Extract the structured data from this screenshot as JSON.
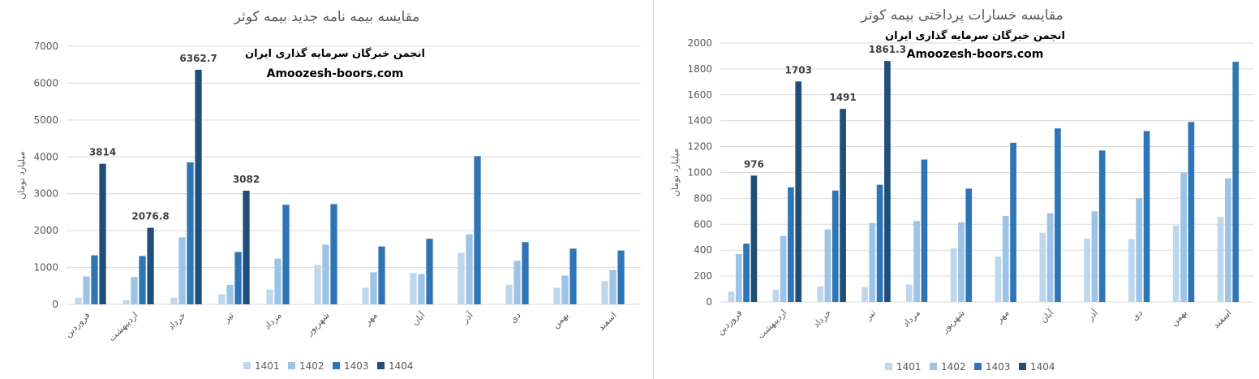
{
  "colors": {
    "series": [
      "#bdd7ee",
      "#9dc3e6",
      "#2e75b6",
      "#1f4e79"
    ],
    "gridline": "#d9d9d9",
    "axis_text": "#595959",
    "label_text": "#404040",
    "watermark": "#000000"
  },
  "chart_data": [
    {
      "type": "bar",
      "title": "مقایسه بیمه نامه جدید بیمه کوثر",
      "ylabel": "میلیارد تومان",
      "xlabel": "",
      "ylim": [
        0,
        7000
      ],
      "yticks": [
        0,
        1000,
        2000,
        3000,
        4000,
        5000,
        6000,
        7000
      ],
      "grid": true,
      "legend_position": "bottom",
      "watermark": [
        "انجمن خبرگان سرمایه گذاری ایران",
        "Amoozesh-boors.com"
      ],
      "categories": [
        "فروردین",
        "اردیبهشت",
        "خرداد",
        "تیر",
        "مرداد",
        "شهریور",
        "مهر",
        "آبان",
        "آذر",
        "دی",
        "بهمن",
        "اسفند"
      ],
      "series": [
        {
          "name": "1401",
          "values": [
            180,
            110,
            180,
            270,
            400,
            1070,
            450,
            850,
            1400,
            530,
            450,
            630
          ]
        },
        {
          "name": "1402",
          "values": [
            760,
            740,
            1820,
            530,
            1240,
            1620,
            870,
            820,
            1900,
            1180,
            780,
            930
          ]
        },
        {
          "name": "1403",
          "values": [
            1330,
            1310,
            3850,
            1420,
            2700,
            2720,
            1570,
            1780,
            4020,
            1690,
            1510,
            1460
          ]
        },
        {
          "name": "1404",
          "values": [
            3814,
            2076.8,
            6362.7,
            3082,
            null,
            null,
            null,
            null,
            null,
            null,
            null,
            null
          ]
        }
      ],
      "data_labels": [
        "3814",
        "2076.8",
        "6362.7",
        "3082"
      ]
    },
    {
      "type": "bar",
      "title": "مقایسه خسارات پرداختی بیمه کوثر",
      "ylabel": "میلیارد تومان",
      "xlabel": "",
      "ylim": [
        0,
        2000
      ],
      "yticks": [
        0,
        200,
        400,
        600,
        800,
        1000,
        1200,
        1400,
        1600,
        1800,
        2000
      ],
      "grid": true,
      "legend_position": "bottom",
      "watermark": [
        "انجمن خبرگان سرمایه گذاری ایران",
        "Amoozesh-boors.com"
      ],
      "categories": [
        "فروردین",
        "اردیبهشت",
        "خرداد",
        "تیر",
        "مرداد",
        "شهریور",
        "مهر",
        "آبان",
        "آذر",
        "دی",
        "بهمن",
        "اسفند"
      ],
      "series": [
        {
          "name": "1401",
          "values": [
            80,
            95,
            120,
            115,
            135,
            415,
            350,
            535,
            490,
            485,
            590,
            655
          ]
        },
        {
          "name": "1402",
          "values": [
            370,
            510,
            560,
            610,
            625,
            615,
            665,
            685,
            700,
            800,
            1000,
            955
          ]
        },
        {
          "name": "1403",
          "values": [
            450,
            885,
            860,
            905,
            1100,
            875,
            1230,
            1340,
            1170,
            1320,
            1390,
            1855
          ]
        },
        {
          "name": "1404",
          "values": [
            976,
            1703,
            1491,
            1861.3,
            null,
            null,
            null,
            null,
            null,
            null,
            null,
            null
          ]
        }
      ],
      "data_labels": [
        "976",
        "1703",
        "1491",
        "1861.3"
      ]
    }
  ]
}
